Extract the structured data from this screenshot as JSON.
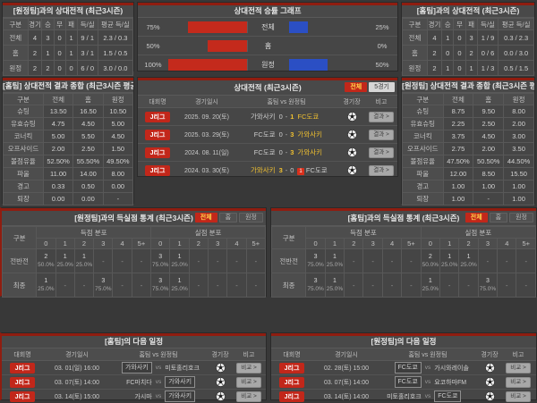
{
  "colors": {
    "accent_red": "#8f1d10",
    "badge_red": "#c2271a",
    "bar_red": "#c42a1c",
    "bar_blue": "#2b4fc4",
    "highlight_yellow": "#f0c030"
  },
  "top_left": {
    "title": "[원정팀]과의 상대전적 (최근3시즌)",
    "headers": [
      "구분",
      "경기",
      "승",
      "무",
      "패",
      "득/실",
      "평균 득/실"
    ],
    "rows": [
      [
        "전체",
        "4",
        "3",
        "0",
        "1",
        "9 / 1",
        "2.3 / 0.3"
      ],
      [
        "홈",
        "2",
        "1",
        "0",
        "1",
        "3 / 1",
        "1.5 / 0.5"
      ],
      [
        "원정",
        "2",
        "2",
        "0",
        "0",
        "6 / 0",
        "3.0 / 0.0"
      ]
    ]
  },
  "graph": {
    "title": "상대전적 승률 그래프",
    "rows": [
      {
        "label": "전체",
        "left_pct": "75%",
        "left_value": 75,
        "right_pct": "25%",
        "right_value": 25
      },
      {
        "label": "홈",
        "left_pct": "50%",
        "left_value": 50,
        "right_pct": "0%",
        "right_value": 0
      },
      {
        "label": "원정",
        "left_pct": "100%",
        "left_value": 100,
        "right_pct": "50%",
        "right_value": 50
      }
    ]
  },
  "top_right": {
    "title": "[홈팀]과의 상대전적 (최근3시즌)",
    "headers": [
      "구분",
      "경기",
      "승",
      "무",
      "패",
      "득/실",
      "평균 득/실"
    ],
    "rows": [
      [
        "전체",
        "4",
        "1",
        "0",
        "3",
        "1 / 9",
        "0.3 / 2.3"
      ],
      [
        "홈",
        "2",
        "0",
        "0",
        "2",
        "0 / 6",
        "0.0 / 3.0"
      ],
      [
        "원정",
        "2",
        "1",
        "0",
        "1",
        "1 / 3",
        "0.5 / 1.5"
      ]
    ]
  },
  "summary_left": {
    "title": "[홈팀] 상대전적 결과 종합 (최근3시즌 평균)",
    "headers": [
      "구분",
      "전체",
      "홈",
      "원정"
    ],
    "rows": [
      [
        "슈팅",
        "13.50",
        "16.50",
        "10.50"
      ],
      [
        "유효슈팅",
        "4.75",
        "4.50",
        "5.00"
      ],
      [
        "코너킥",
        "5.00",
        "5.50",
        "4.50"
      ],
      [
        "오프사이드",
        "2.00",
        "2.50",
        "1.50"
      ],
      [
        "볼점유율",
        "52.50%",
        "55.50%",
        "49.50%"
      ],
      [
        "파울",
        "11.00",
        "14.00",
        "8.00"
      ],
      [
        "경고",
        "0.33",
        "0.50",
        "0.00"
      ],
      [
        "퇴장",
        "0.00",
        "0.00",
        "-"
      ]
    ]
  },
  "summary_right": {
    "title": "[원정팀] 상대전적 결과 종합 (최근3시즌 평균)",
    "headers": [
      "구분",
      "전체",
      "홈",
      "원정"
    ],
    "rows": [
      [
        "슈팅",
        "8.75",
        "9.50",
        "8.00"
      ],
      [
        "유효슈팅",
        "2.25",
        "2.50",
        "2.00"
      ],
      [
        "코너킥",
        "3.75",
        "4.50",
        "3.00"
      ],
      [
        "오프사이드",
        "2.75",
        "2.00",
        "3.50"
      ],
      [
        "볼점유율",
        "47.50%",
        "50.50%",
        "44.50%"
      ],
      [
        "파울",
        "12.00",
        "8.50",
        "15.50"
      ],
      [
        "경고",
        "1.00",
        "1.00",
        "1.00"
      ],
      [
        "퇴장",
        "1.00",
        "-",
        "1.00"
      ]
    ]
  },
  "matches": {
    "title": "상대전적 (최근3시즌)",
    "filters": [
      {
        "label": "전체",
        "active": true
      },
      {
        "label": "5경기",
        "active": false
      }
    ],
    "headers": {
      "league": "대회명",
      "datetime": "경기일시",
      "teams": "홈팀 vs 원정팀",
      "stadium": "경기장",
      "note": "비고"
    },
    "note_label": "결과 >",
    "score_separator": "-",
    "rows": [
      {
        "league": "J리그",
        "date": "2025. 09. 20(토)",
        "home": "가와사키",
        "home_score": "0",
        "away_score": "1",
        "away": "FC도쿄",
        "winner": "away",
        "red_card": ""
      },
      {
        "league": "J리그",
        "date": "2025. 03. 29(토)",
        "home": "FC도쿄",
        "home_score": "0",
        "away_score": "3",
        "away": "가와사키",
        "winner": "away",
        "red_card": ""
      },
      {
        "league": "J리그",
        "date": "2024. 08. 11(일)",
        "home": "FC도쿄",
        "home_score": "0",
        "away_score": "3",
        "away": "가와사키",
        "winner": "away",
        "red_card": ""
      },
      {
        "league": "J리그",
        "date": "2024. 03. 30(토)",
        "home": "가와사키",
        "home_score": "3",
        "away_score": "0",
        "away": "FC도쿄",
        "winner": "home",
        "red_card": "1"
      }
    ]
  },
  "goals_left": {
    "title": "[원정팀]과의 득실점 통계 (최근3시즌)",
    "filters": [
      {
        "label": "전체",
        "active": true
      },
      {
        "label": "홈",
        "active": false
      },
      {
        "label": "원정",
        "active": false
      }
    ],
    "row_header": "구분",
    "group_labels": [
      "득점 분포",
      "실점 분포"
    ],
    "bins": [
      "0",
      "1",
      "2",
      "3",
      "4",
      "5+"
    ],
    "rows": [
      {
        "label": "전반전",
        "scored": [
          "2|50.0%",
          "1|25.0%",
          "1|25.0%",
          "-",
          "-",
          "-"
        ],
        "conceded": [
          "3|75.0%",
          "1|25.0%",
          "-",
          "-",
          "-",
          "-"
        ]
      },
      {
        "label": "최종",
        "scored": [
          "1|25.0%",
          "-",
          "-",
          "3|75.0%",
          "-",
          "-"
        ],
        "conceded": [
          "3|75.0%",
          "1|25.0%",
          "-",
          "-",
          "-",
          "-"
        ]
      }
    ]
  },
  "goals_right": {
    "title": "[홈팀]과의 득실점 통계 (최근3시즌)",
    "filters": [
      {
        "label": "전체",
        "active": true
      },
      {
        "label": "홈",
        "active": false
      },
      {
        "label": "원정",
        "active": false
      }
    ],
    "row_header": "구분",
    "group_labels": [
      "득점 분포",
      "실점 분포"
    ],
    "bins": [
      "0",
      "1",
      "2",
      "3",
      "4",
      "5+"
    ],
    "rows": [
      {
        "label": "전반전",
        "scored": [
          "3|75.0%",
          "1|25.0%",
          "-",
          "-",
          "-",
          "-"
        ],
        "conceded": [
          "2|50.0%",
          "1|25.0%",
          "1|25.0%",
          "-",
          "-",
          "-"
        ]
      },
      {
        "label": "최종",
        "scored": [
          "3|75.0%",
          "1|25.0%",
          "-",
          "-",
          "-",
          "-"
        ],
        "conceded": [
          "1|25.0%",
          "-",
          "-",
          "3|75.0%",
          "-",
          "-"
        ]
      }
    ]
  },
  "schedule_left": {
    "title": "[홈팀]의 다음 일정",
    "headers": {
      "league": "대회명",
      "datetime": "경기일시",
      "teams": "홈팀 vs 원정팀",
      "stadium": "경기장",
      "note": "비고"
    },
    "note_label": "비교 >",
    "vs_label": "vs",
    "rows": [
      {
        "league": "J리그",
        "date": "03. 01(일) 16:00",
        "home": "가와사키",
        "away": "미토홀리호크",
        "boxed": "home"
      },
      {
        "league": "J리그",
        "date": "03. 07(토) 14:00",
        "home": "FC마치다",
        "away": "가와사키",
        "boxed": "away"
      },
      {
        "league": "J리그",
        "date": "03. 14(토) 15:00",
        "home": "가시마",
        "away": "가와사키",
        "boxed": "away"
      }
    ]
  },
  "schedule_right": {
    "title": "[원정팀]의 다음 일정",
    "headers": {
      "league": "대회명",
      "datetime": "경기일시",
      "teams": "홈팀 vs 원정팀",
      "stadium": "경기장",
      "note": "비고"
    },
    "note_label": "비교 >",
    "vs_label": "vs",
    "rows": [
      {
        "league": "J리그",
        "date": "02. 28(토) 15:00",
        "home": "FC도쿄",
        "away": "가시와레이솔",
        "boxed": "home"
      },
      {
        "league": "J리그",
        "date": "03. 07(토) 14:00",
        "home": "FC도쿄",
        "away": "요코하마FM",
        "boxed": "home"
      },
      {
        "league": "J리그",
        "date": "03. 14(토) 14:00",
        "home": "미토홀리호크",
        "away": "FC도쿄",
        "boxed": "away"
      }
    ]
  }
}
